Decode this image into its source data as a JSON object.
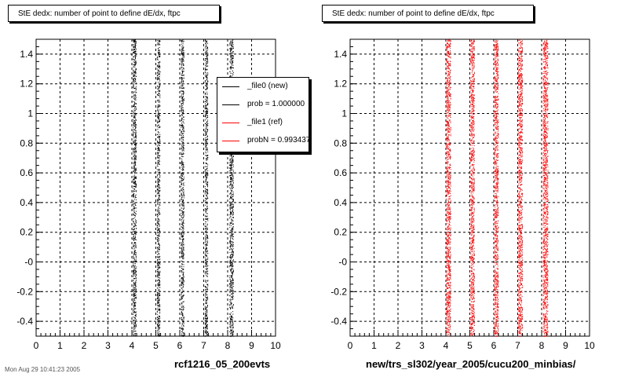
{
  "chart_data": [
    {
      "type": "scatter",
      "title": "StE dedx: number of point to define dE/dx, ftpc",
      "xlabel": "rcf1216_05_200evts",
      "ylabel": "",
      "xlim": [
        0,
        10
      ],
      "ylim": [
        -0.5,
        1.5
      ],
      "x_ticks": [
        "0",
        "1",
        "2",
        "3",
        "4",
        "5",
        "6",
        "7",
        "8",
        "9",
        "10"
      ],
      "y_ticks": [
        {
          "v": -0.4,
          "label": "-0.4"
        },
        {
          "v": -0.2,
          "label": "-0.2"
        },
        {
          "v": 0.0,
          "label": "-0"
        },
        {
          "v": 0.2,
          "label": "0.2"
        },
        {
          "v": 0.4,
          "label": "0.4"
        },
        {
          "v": 0.6,
          "label": "0.6"
        },
        {
          "v": 0.8,
          "label": "0.8"
        },
        {
          "v": 1.0,
          "label": "1"
        },
        {
          "v": 1.2,
          "label": "1.2"
        },
        {
          "v": 1.4,
          "label": "1.4"
        }
      ],
      "grid": true,
      "series": [
        {
          "name": "_file0 (new)",
          "color": "#000000",
          "x_bands": [
            4.1,
            5.1,
            6.1,
            7.1,
            8.15
          ],
          "band_halfwidths": [
            0.07,
            0.06,
            0.06,
            0.06,
            0.08
          ],
          "y_range": [
            -0.5,
            1.5
          ]
        }
      ],
      "legend": {
        "placement": "top-right",
        "entries": [
          {
            "label": "_file0 (new)",
            "color": "#000000"
          },
          {
            "label": "prob = 1.000000",
            "color": "#000000"
          },
          {
            "label": "_file1 (ref)",
            "color": "#ff0000"
          },
          {
            "label": "probN = 0.993437",
            "color": "#ff0000"
          }
        ]
      }
    },
    {
      "type": "scatter",
      "title": "StE dedx: number of point to define dE/dx, ftpc",
      "xlabel": "new/trs_sl302/year_2005/cucu200_minbias/",
      "ylabel": "",
      "xlim": [
        0,
        10
      ],
      "ylim": [
        -0.5,
        1.5
      ],
      "x_ticks": [
        "0",
        "1",
        "2",
        "3",
        "4",
        "5",
        "6",
        "7",
        "8",
        "9",
        "10"
      ],
      "y_ticks": [
        {
          "v": -0.4,
          "label": "-0.4"
        },
        {
          "v": -0.2,
          "label": "-0.2"
        },
        {
          "v": 0.0,
          "label": "-0"
        },
        {
          "v": 0.2,
          "label": "0.2"
        },
        {
          "v": 0.4,
          "label": "0.4"
        },
        {
          "v": 0.6,
          "label": "0.6"
        },
        {
          "v": 0.8,
          "label": "0.8"
        },
        {
          "v": 1.0,
          "label": "1"
        },
        {
          "v": 1.2,
          "label": "1.2"
        },
        {
          "v": 1.4,
          "label": "1.4"
        }
      ],
      "grid": true,
      "series": [
        {
          "name": "_file1 (ref)",
          "color": "#ff0000",
          "x_bands": [
            4.1,
            5.1,
            6.1,
            7.1,
            8.15
          ],
          "band_halfwidths": [
            0.09,
            0.08,
            0.08,
            0.09,
            0.1
          ],
          "y_range": [
            -0.5,
            1.5
          ]
        }
      ]
    }
  ],
  "footer_stamp": "Mon Aug 29 10:41:23 2005"
}
